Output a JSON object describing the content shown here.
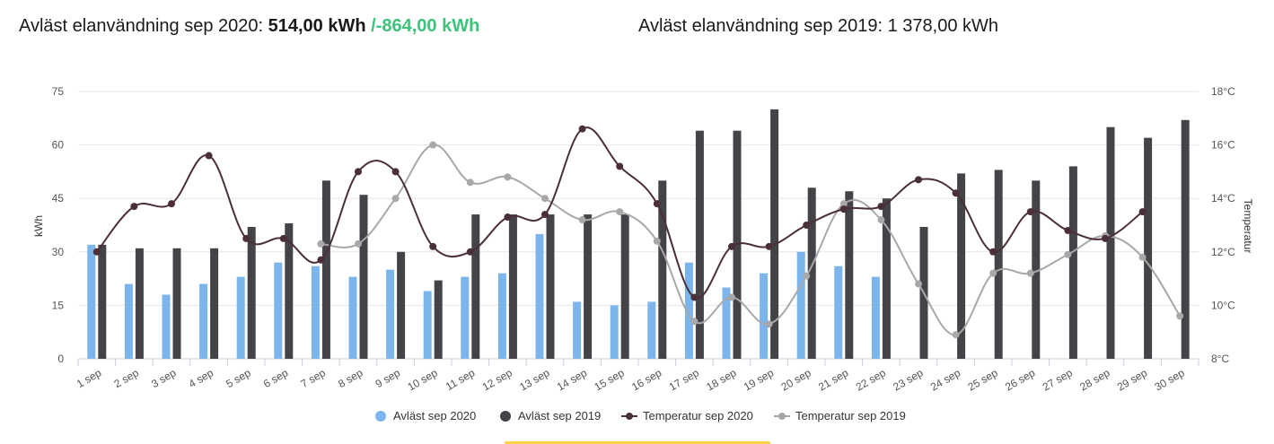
{
  "header": {
    "left_label": "Avläst elanvändning sep 2020:",
    "left_value": "514,00 kWh",
    "left_diff": "/-864,00 kWh",
    "right_label": "Avläst elanvändning sep 2019:",
    "right_value": "1 378,00 kWh"
  },
  "colors": {
    "series_2020": "#7cb5ec",
    "series_2019": "#434348",
    "temp_2020": "#4a2f38",
    "temp_2019": "#a8a8a8",
    "diff_green": "#3cc47c"
  },
  "chart_data": {
    "type": "bar",
    "categories": [
      "1 sep",
      "2 sep",
      "3 sep",
      "4 sep",
      "5 sep",
      "6 sep",
      "7 sep",
      "8 sep",
      "9 sep",
      "10 sep",
      "11 sep",
      "12 sep",
      "13 sep",
      "14 sep",
      "15 sep",
      "16 sep",
      "17 sep",
      "18 sep",
      "19 sep",
      "20 sep",
      "21 sep",
      "22 sep",
      "23 sep",
      "24 sep",
      "25 sep",
      "26 sep",
      "27 sep",
      "28 sep",
      "29 sep",
      "30 sep"
    ],
    "ylabel": "kWh",
    "y2label": "Temperatur",
    "ylim": [
      0,
      75
    ],
    "yticks": [
      "0",
      "15",
      "30",
      "45",
      "60",
      "75"
    ],
    "y2lim": [
      8,
      18
    ],
    "y2ticks": [
      "8°C",
      "10°C",
      "12°C",
      "14°C",
      "16°C",
      "18°C"
    ],
    "grid": true,
    "legend_position": "bottom-center",
    "series": [
      {
        "name": "Avläst sep 2020",
        "kind": "bar",
        "axis": "left",
        "values": [
          32,
          21,
          18,
          21,
          23,
          27,
          26,
          23,
          25,
          19,
          23,
          24,
          35,
          16,
          15,
          16,
          27,
          20,
          24,
          30,
          26,
          23,
          null,
          null,
          null,
          null,
          null,
          null,
          null,
          null
        ]
      },
      {
        "name": "Avläst sep 2019",
        "kind": "bar",
        "axis": "left",
        "values": [
          32,
          31,
          31,
          31,
          37,
          38,
          50,
          46,
          30,
          22,
          40.5,
          40.5,
          40.5,
          40.5,
          40.5,
          50,
          64,
          64,
          70,
          48,
          47,
          45,
          37,
          52,
          53,
          50,
          54,
          65,
          62,
          67
        ]
      },
      {
        "name": "Temperatur sep 2020",
        "kind": "line",
        "axis": "right",
        "values": [
          12.0,
          13.7,
          13.8,
          15.6,
          12.5,
          12.5,
          11.7,
          15.0,
          15.0,
          12.2,
          12.0,
          13.3,
          13.4,
          16.6,
          15.2,
          13.8,
          10.3,
          12.2,
          12.2,
          13.0,
          13.6,
          13.7,
          14.7,
          14.2,
          12.0,
          13.5,
          12.8,
          12.5,
          13.5,
          null
        ]
      },
      {
        "name": "Temperatur sep 2019",
        "kind": "line",
        "axis": "right",
        "values": [
          null,
          null,
          null,
          null,
          null,
          null,
          12.3,
          12.3,
          14.0,
          16.0,
          14.6,
          14.8,
          14.0,
          13.2,
          13.5,
          12.4,
          9.4,
          10.3,
          9.3,
          11.1,
          13.8,
          13.2,
          10.8,
          8.9,
          11.2,
          11.2,
          11.9,
          12.6,
          11.8,
          9.6
        ]
      }
    ]
  }
}
